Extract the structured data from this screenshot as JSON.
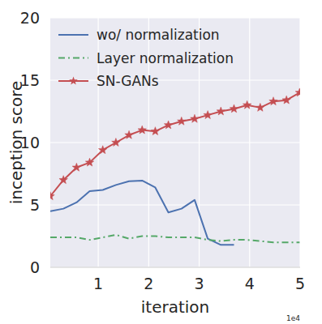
{
  "chart_data": {
    "type": "line",
    "x_label": "iteration",
    "y_label": "inception score",
    "annotations": [
      "1e4"
    ],
    "x": [
      0.05,
      0.31,
      0.57,
      0.83,
      1.09,
      1.35,
      1.61,
      1.87,
      2.13,
      2.39,
      2.65,
      2.91,
      3.17,
      3.43,
      3.69,
      3.95,
      4.21,
      4.47,
      4.73,
      4.99
    ],
    "series": [
      {
        "name": "wo/ normalization",
        "color": "#4c72b0",
        "line_style": "solid",
        "values": [
          4.5,
          4.7,
          5.2,
          6.1,
          6.2,
          6.6,
          6.9,
          6.95,
          6.4,
          4.4,
          4.7,
          5.4,
          2.3,
          1.8,
          1.8,
          null,
          null,
          null,
          null,
          null
        ]
      },
      {
        "name": "Layer normalization",
        "color": "#55a868",
        "line_style": "dashdot",
        "values": [
          2.4,
          2.4,
          2.4,
          2.2,
          2.4,
          2.6,
          2.3,
          2.5,
          2.5,
          2.4,
          2.4,
          2.4,
          2.2,
          2.1,
          2.2,
          2.2,
          2.1,
          2.0,
          2.0,
          2.0
        ]
      },
      {
        "name": "SN-GANs",
        "color": "#c44e52",
        "line_style": "solid",
        "marker": "star",
        "values": [
          5.7,
          7.0,
          8.0,
          8.4,
          9.4,
          10.0,
          10.6,
          11.0,
          10.9,
          11.4,
          11.7,
          11.9,
          12.2,
          12.5,
          12.7,
          13.0,
          12.8,
          13.3,
          13.4,
          14.0
        ]
      }
    ],
    "xlim": [
      0.05,
      5
    ],
    "ylim": [
      0,
      20
    ],
    "xticks": [
      1,
      2,
      3,
      4,
      5
    ],
    "yticks": [
      0,
      5,
      10,
      15,
      20
    ],
    "grid": true,
    "legend": "upper left"
  }
}
